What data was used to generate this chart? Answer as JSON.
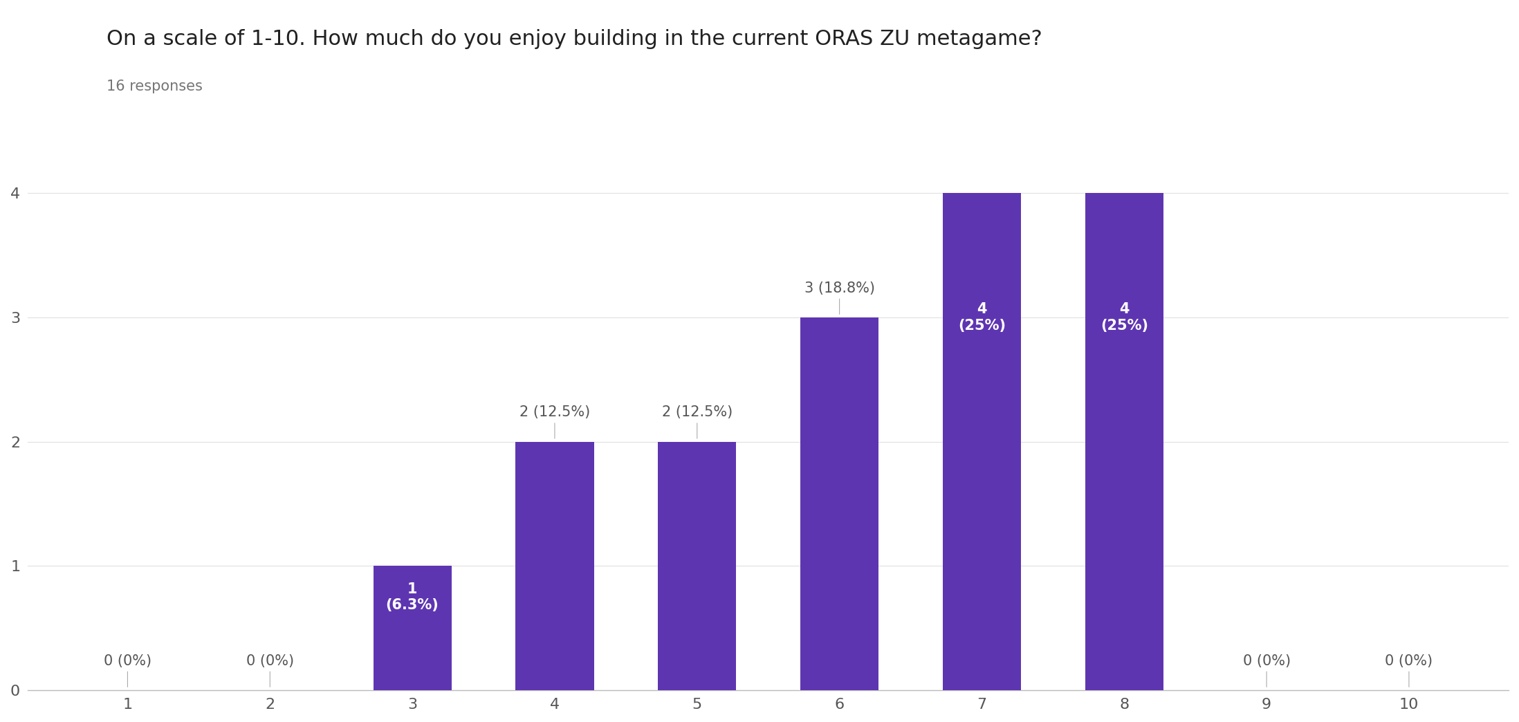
{
  "title": "On a scale of 1-10. How much do you enjoy building in the current ORAS ZU metagame?",
  "subtitle": "16 responses",
  "categories": [
    1,
    2,
    3,
    4,
    5,
    6,
    7,
    8,
    9,
    10
  ],
  "values": [
    0,
    0,
    1,
    2,
    2,
    3,
    4,
    4,
    0,
    0
  ],
  "labels_above": [
    "0 (0%)",
    "0 (0%)",
    "",
    "2 (12.5%)",
    "2 (12.5%)",
    "3 (18.8%)",
    "",
    "",
    "0 (0%)",
    "0 (0%)"
  ],
  "labels_inside": [
    "",
    "",
    "1\n(6.3%)",
    "",
    "",
    "",
    "4\n(25%)",
    "4\n(25%)",
    "",
    ""
  ],
  "bar_color": "#5e35b1",
  "background_color": "#ffffff",
  "title_fontsize": 22,
  "subtitle_fontsize": 15,
  "tick_fontsize": 16,
  "label_fontsize": 15,
  "ylim": [
    0,
    4.6
  ],
  "yticks": [
    0,
    1,
    2,
    3,
    4
  ],
  "grid_color": "#e0e0e0",
  "label_inside_color": "#ffffff",
  "label_outside_color": "#555555",
  "connector_color": "#aaaaaa"
}
